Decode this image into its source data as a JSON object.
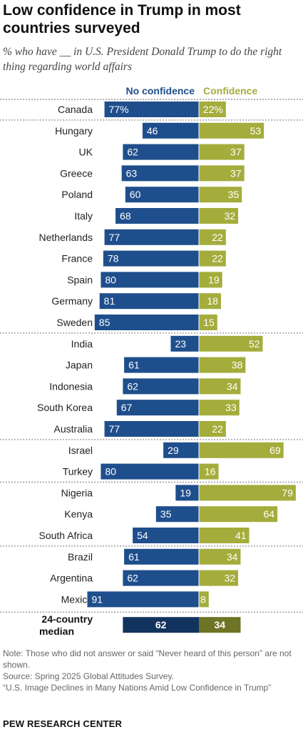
{
  "title": "Low confidence in Trump in most countries surveyed",
  "subtitle": "% who have __ in U.S. President Donald Trump to do the right thing regarding world affairs",
  "colors": {
    "no_confidence": "#1f4e8c",
    "confidence": "#a4ad3c",
    "no_confidence_median": "#12335e",
    "confidence_median": "#6e7425",
    "header_no_confidence": "#1f4e8c",
    "header_confidence": "#a4ad3c"
  },
  "chart_data": {
    "type": "bar",
    "orientation": "diverging-horizontal",
    "series": [
      {
        "name": "No confidence",
        "values": [
          77,
          46,
          62,
          63,
          60,
          68,
          77,
          78,
          80,
          81,
          85,
          23,
          61,
          62,
          67,
          77,
          29,
          80,
          19,
          35,
          54,
          61,
          62,
          91,
          62
        ]
      },
      {
        "name": "Confidence",
        "values": [
          22,
          53,
          37,
          37,
          35,
          32,
          22,
          22,
          19,
          18,
          15,
          52,
          38,
          34,
          33,
          22,
          69,
          16,
          79,
          64,
          41,
          34,
          32,
          8,
          34
        ]
      }
    ],
    "categories": [
      "Canada",
      "Hungary",
      "UK",
      "Greece",
      "Poland",
      "Italy",
      "Netherlands",
      "France",
      "Spain",
      "Germany",
      "Sweden",
      "India",
      "Japan",
      "Indonesia",
      "South Korea",
      "Australia",
      "Israel",
      "Turkey",
      "Nigeria",
      "Kenya",
      "South Africa",
      "Brazil",
      "Argentina",
      "Mexico",
      "24-country median"
    ],
    "value_labels": {
      "no_confidence": [
        "77%",
        "46",
        "62",
        "63",
        "60",
        "68",
        "77",
        "78",
        "80",
        "81",
        "85",
        "23",
        "61",
        "62",
        "67",
        "77",
        "29",
        "80",
        "19",
        "35",
        "54",
        "61",
        "62",
        "91",
        "62"
      ],
      "confidence": [
        "22%",
        "53",
        "37",
        "37",
        "35",
        "32",
        "22",
        "22",
        "19",
        "18",
        "15",
        "52",
        "38",
        "34",
        "33",
        "22",
        "69",
        "16",
        "79",
        "64",
        "41",
        "34",
        "32",
        "8",
        "34"
      ]
    },
    "groups": [
      {
        "rows": [
          0
        ]
      },
      {
        "rows": [
          1,
          2,
          3,
          4,
          5,
          6,
          7,
          8,
          9,
          10
        ]
      },
      {
        "rows": [
          11,
          12,
          13,
          14,
          15
        ]
      },
      {
        "rows": [
          16,
          17
        ]
      },
      {
        "rows": [
          18,
          19,
          20
        ]
      },
      {
        "rows": [
          21,
          22,
          23
        ]
      },
      {
        "rows": [
          24
        ]
      }
    ],
    "median_label_lines": [
      "24-country",
      "median"
    ],
    "legend_placement": "top, above bars",
    "grid": false
  },
  "notes": [
    "Note: Those who did not answer or said “Never heard of this person” are not shown.",
    "Source: Spring 2025 Global Attitudes Survey.",
    "“U.S. Image Declines in Many Nations Amid Low Confidence in Trump”"
  ],
  "brand": "PEW RESEARCH CENTER"
}
